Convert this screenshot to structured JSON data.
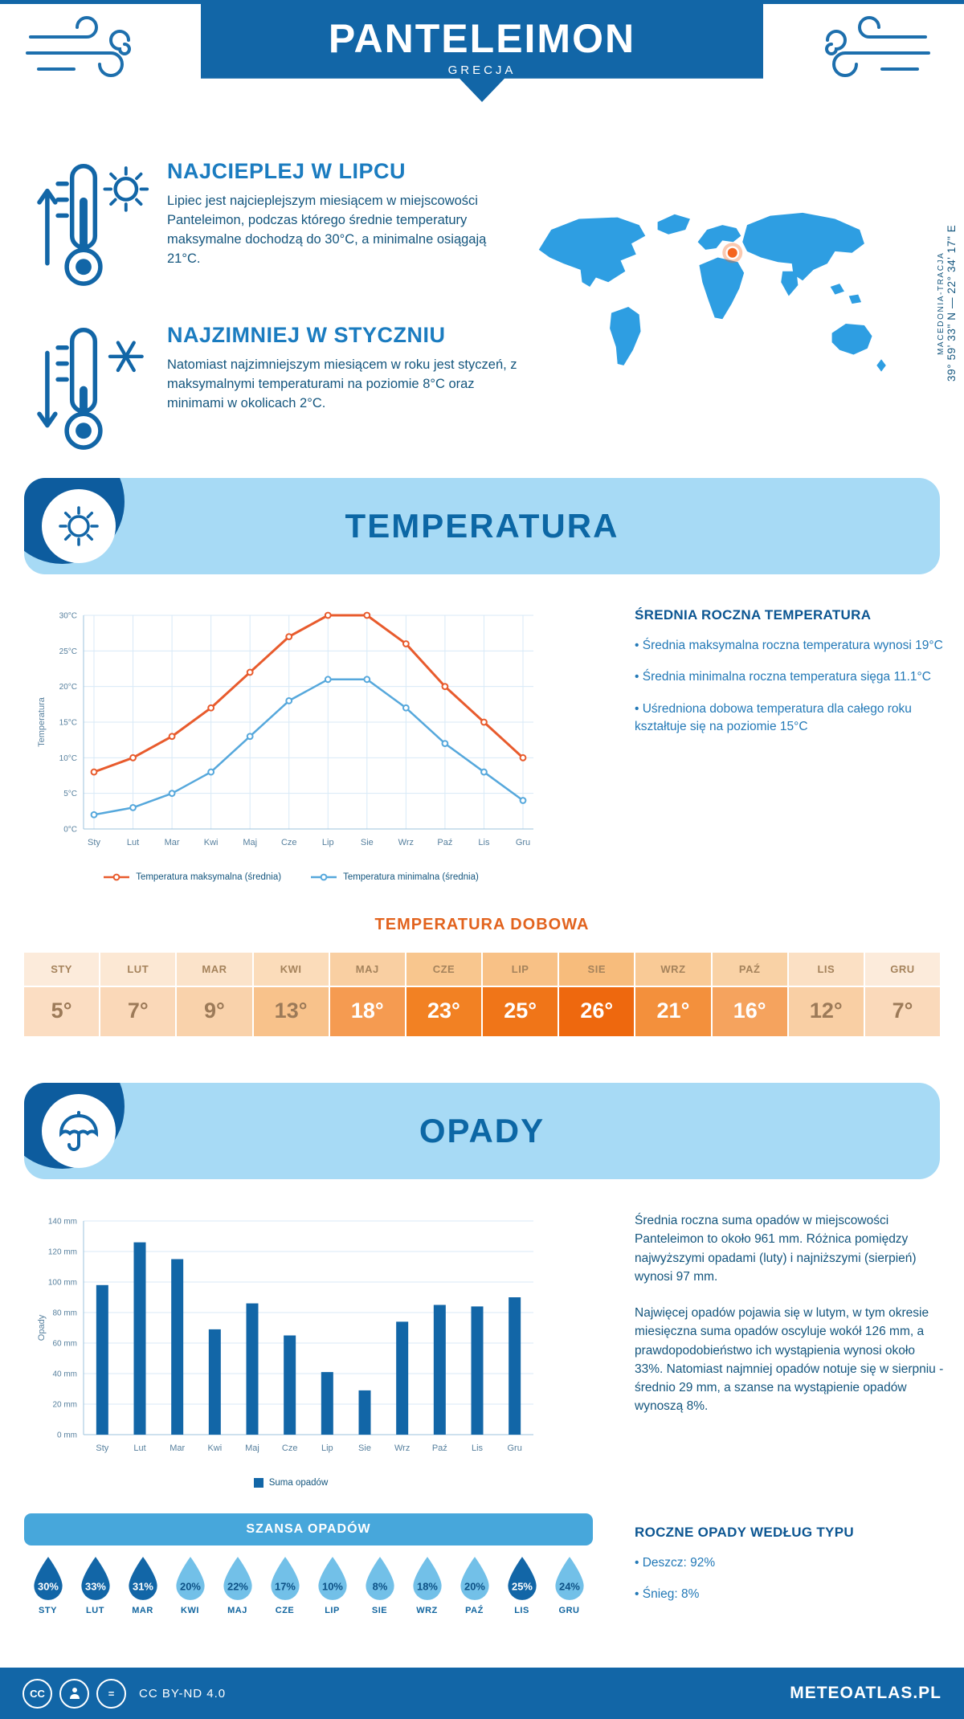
{
  "header": {
    "title": "PANTELEIMON",
    "subtitle": "GRECJA"
  },
  "location": {
    "region": "MACEDONIA-TRACJA",
    "coordinates": "39° 59' 33\" N — 22° 34' 17\" E",
    "marker_color": "#f4641e"
  },
  "sections": {
    "warm": {
      "title": "NAJCIEPLEJ W LIPCU",
      "text": "Lipiec jest najcieplejszym miesiącem w miejscowości Panteleimon, podczas którego średnie temperatury maksymalne dochodzą do 30°C, a minimalne osiągają 21°C."
    },
    "cold": {
      "title": "NAJZIMNIEJ W STYCZNIU",
      "text": "Natomiast najzimniejszym miesiącem w roku jest styczeń, z maksymalnymi temperaturami na poziomie 8°C oraz minimami w okolicach 2°C."
    }
  },
  "temperature": {
    "banner": "TEMPERATURA",
    "summary_title": "ŚREDNIA ROCZNA TEMPERATURA",
    "bullets": [
      "• Średnia maksymalna roczna temperatura wynosi 19°C",
      "• Średnia minimalna roczna temperatura sięga 11.1°C",
      "• Uśredniona dobowa temperatura dla całego roku kształtuje się na poziomie 15°C"
    ],
    "daily_title": "TEMPERATURA DOBOWA",
    "table": {
      "months": [
        "STY",
        "LUT",
        "MAR",
        "KWI",
        "MAJ",
        "CZE",
        "LIP",
        "SIE",
        "WRZ",
        "PAŹ",
        "LIS",
        "GRU"
      ],
      "values": [
        "5°",
        "7°",
        "9°",
        "13°",
        "18°",
        "23°",
        "25°",
        "26°",
        "21°",
        "16°",
        "12°",
        "7°"
      ],
      "header_fg": "#a5835c",
      "header_bg": [
        "#fcebdb",
        "#fce8d4",
        "#fbe3ca",
        "#fbdcba",
        "#f9cfa2",
        "#f8c68e",
        "#f8c186",
        "#f7bc7c",
        "#f9ca96",
        "#f9d2a6",
        "#fbe0c4",
        "#fcebdb"
      ],
      "cell_bg": [
        "#fbddc2",
        "#fad8b8",
        "#f9d2ab",
        "#f8c28b",
        "#f59b51",
        "#f28123",
        "#f07518",
        "#ee680e",
        "#f3903c",
        "#f5a35e",
        "#f9cfa4",
        "#fad9ba"
      ],
      "cell_fg": [
        "#9c7a58",
        "#9c7a58",
        "#9c7a58",
        "#9c7a58",
        "#ffffff",
        "#ffffff",
        "#ffffff",
        "#ffffff",
        "#ffffff",
        "#ffffff",
        "#9c7a58",
        "#9c7a58"
      ]
    }
  },
  "precipitation": {
    "banner": "OPADY",
    "text1": "Średnia roczna suma opadów w miejscowości Panteleimon to około 961 mm. Różnica pomiędzy najwyższymi opadami (luty) i najniższymi (sierpień) wynosi 97 mm.",
    "text2": "Najwięcej opadów pojawia się w lutym, w tym okresie miesięczna suma opadów oscyluje wokół 126 mm, a prawdopodobieństwo ich wystąpienia wynosi około 33%. Natomiast najmniej opadów notuje się w sierpniu - średnio 29 mm, a szanse na wystąpienie opadów wynoszą 8%.",
    "chance_title": "SZANSA OPADÓW",
    "drops": [
      {
        "month": "STY",
        "value": "30%",
        "fill": "#1266a7",
        "text": "#ffffff"
      },
      {
        "month": "LUT",
        "value": "33%",
        "fill": "#1266a7",
        "text": "#ffffff"
      },
      {
        "month": "MAR",
        "value": "31%",
        "fill": "#1266a7",
        "text": "#ffffff"
      },
      {
        "month": "KWI",
        "value": "20%",
        "fill": "#72c0e8",
        "text": "#0d5186"
      },
      {
        "month": "MAJ",
        "value": "22%",
        "fill": "#72c0e8",
        "text": "#0d5186"
      },
      {
        "month": "CZE",
        "value": "17%",
        "fill": "#72c0e8",
        "text": "#0d5186"
      },
      {
        "month": "LIP",
        "value": "10%",
        "fill": "#72c0e8",
        "text": "#0d5186"
      },
      {
        "month": "SIE",
        "value": "8%",
        "fill": "#72c0e8",
        "text": "#0d5186"
      },
      {
        "month": "WRZ",
        "value": "18%",
        "fill": "#72c0e8",
        "text": "#0d5186"
      },
      {
        "month": "PAŹ",
        "value": "20%",
        "fill": "#72c0e8",
        "text": "#0d5186"
      },
      {
        "month": "LIS",
        "value": "25%",
        "fill": "#1266a7",
        "text": "#ffffff"
      },
      {
        "month": "GRU",
        "value": "24%",
        "fill": "#72c0e8",
        "text": "#0d5186"
      }
    ],
    "type_title": "ROCZNE OPADY WEDŁUG TYPU",
    "type_bullets": [
      "• Deszcz: 92%",
      "• Śnieg: 8%"
    ]
  },
  "chart_data": [
    {
      "type": "line",
      "categories": [
        "Sty",
        "Lut",
        "Mar",
        "Kwi",
        "Maj",
        "Cze",
        "Lip",
        "Sie",
        "Wrz",
        "Paź",
        "Lis",
        "Gru"
      ],
      "series": [
        {
          "name": "Temperatura maksymalna (średnia)",
          "color": "#e85b2d",
          "values": [
            8,
            10,
            13,
            17,
            22,
            27,
            30,
            30,
            26,
            20,
            15,
            10
          ]
        },
        {
          "name": "Temperatura minimalna (średnia)",
          "color": "#56a8dc",
          "values": [
            2,
            3,
            5,
            8,
            13,
            18,
            21,
            21,
            17,
            12,
            8,
            4
          ]
        }
      ],
      "ylabel": "Temperatura",
      "ylim": [
        0,
        30
      ],
      "ytick": 5,
      "yunit": "°C",
      "grid": true,
      "legend_position": "bottom"
    },
    {
      "type": "bar",
      "categories": [
        "Sty",
        "Lut",
        "Mar",
        "Kwi",
        "Maj",
        "Cze",
        "Lip",
        "Sie",
        "Wrz",
        "Paź",
        "Lis",
        "Gru"
      ],
      "series": [
        {
          "name": "Suma opadów",
          "color": "#1266a7",
          "values": [
            98,
            126,
            115,
            69,
            86,
            65,
            41,
            29,
            74,
            85,
            84,
            90
          ]
        }
      ],
      "ylabel": "Opady",
      "ylim": [
        0,
        140
      ],
      "ytick": 20,
      "yunit": " mm",
      "grid": true,
      "legend_position": "bottom"
    }
  ],
  "footer": {
    "license": "CC BY-ND 4.0",
    "brand": "METEOATLAS.PL"
  }
}
